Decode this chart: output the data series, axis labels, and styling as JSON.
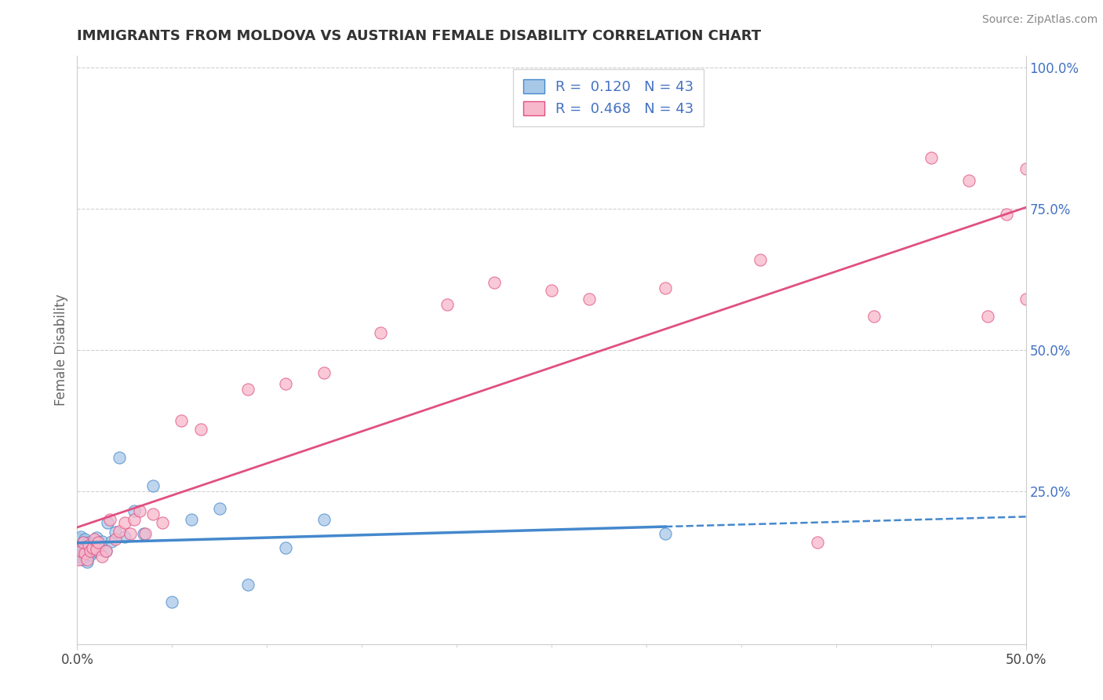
{
  "title": "IMMIGRANTS FROM MOLDOVA VS AUSTRIAN FEMALE DISABILITY CORRELATION CHART",
  "source": "Source: ZipAtlas.com",
  "ylabel": "Female Disability",
  "xlim": [
    0.0,
    0.5
  ],
  "ylim": [
    -0.02,
    1.02
  ],
  "color_moldova": "#a8c8e8",
  "color_austrians": "#f8b8cc",
  "line_color_moldova": "#4488cc",
  "line_color_austrians": "#e05080",
  "background_color": "#ffffff",
  "grid_color": "#d0d0d0",
  "moldova_x": [
    0.001,
    0.001,
    0.001,
    0.002,
    0.002,
    0.002,
    0.003,
    0.003,
    0.003,
    0.004,
    0.004,
    0.004,
    0.005,
    0.005,
    0.005,
    0.006,
    0.006,
    0.007,
    0.007,
    0.008,
    0.008,
    0.009,
    0.01,
    0.01,
    0.011,
    0.012,
    0.013,
    0.015,
    0.016,
    0.018,
    0.02,
    0.022,
    0.025,
    0.03,
    0.035,
    0.04,
    0.05,
    0.06,
    0.075,
    0.09,
    0.11,
    0.13,
    0.31
  ],
  "moldova_y": [
    0.135,
    0.15,
    0.165,
    0.14,
    0.155,
    0.17,
    0.13,
    0.145,
    0.16,
    0.135,
    0.15,
    0.165,
    0.14,
    0.155,
    0.125,
    0.145,
    0.16,
    0.138,
    0.152,
    0.143,
    0.158,
    0.148,
    0.15,
    0.168,
    0.155,
    0.148,
    0.162,
    0.145,
    0.195,
    0.162,
    0.178,
    0.31,
    0.17,
    0.215,
    0.175,
    0.26,
    0.055,
    0.2,
    0.22,
    0.085,
    0.15,
    0.2,
    0.175
  ],
  "austrians_x": [
    0.001,
    0.002,
    0.003,
    0.004,
    0.005,
    0.006,
    0.007,
    0.008,
    0.009,
    0.01,
    0.011,
    0.013,
    0.015,
    0.017,
    0.02,
    0.022,
    0.025,
    0.028,
    0.03,
    0.033,
    0.036,
    0.04,
    0.045,
    0.055,
    0.065,
    0.09,
    0.11,
    0.13,
    0.16,
    0.195,
    0.22,
    0.25,
    0.27,
    0.31,
    0.36,
    0.39,
    0.42,
    0.45,
    0.47,
    0.48,
    0.49,
    0.5,
    0.5
  ],
  "austrians_y": [
    0.13,
    0.145,
    0.16,
    0.14,
    0.13,
    0.155,
    0.145,
    0.15,
    0.165,
    0.148,
    0.16,
    0.135,
    0.145,
    0.2,
    0.165,
    0.18,
    0.195,
    0.175,
    0.2,
    0.215,
    0.175,
    0.21,
    0.195,
    0.375,
    0.36,
    0.43,
    0.44,
    0.46,
    0.53,
    0.58,
    0.62,
    0.605,
    0.59,
    0.61,
    0.66,
    0.16,
    0.56,
    0.84,
    0.8,
    0.56,
    0.74,
    0.59,
    0.82
  ]
}
